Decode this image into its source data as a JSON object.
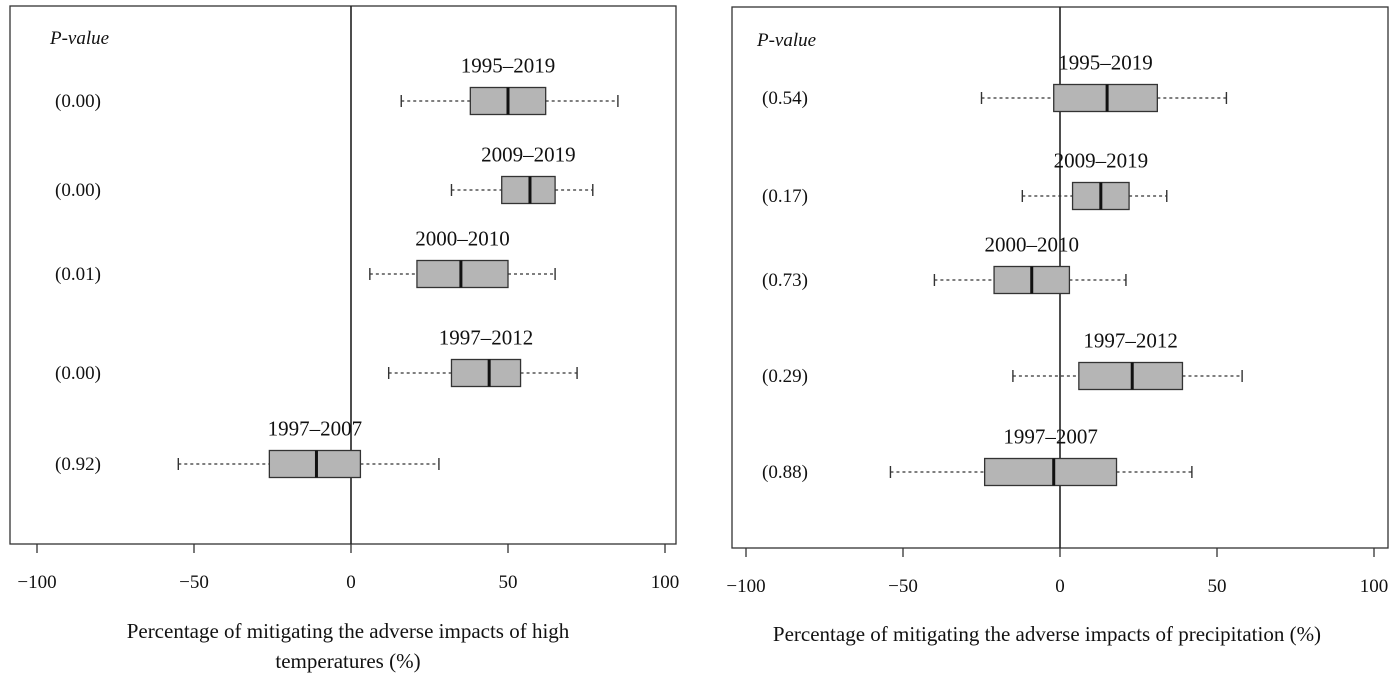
{
  "chart_data": [
    {
      "type": "boxplot",
      "xlabel": "Percentage of mitigating the adverse impacts of high temperatures (%)",
      "xlabel_lines": [
        "Percentage of mitigating the adverse impacts of high",
        "temperatures (%)"
      ],
      "pvalue_header": "P-value",
      "xlim": [
        -100,
        100
      ],
      "xticks": [
        -100,
        -50,
        0,
        50,
        100
      ],
      "zero_line": true,
      "series": [
        {
          "name": "1995–2019",
          "pvalue": "(0.00)",
          "min": 16,
          "q1": 38,
          "median": 50,
          "q3": 62,
          "max": 85
        },
        {
          "name": "2009–2019",
          "pvalue": "(0.00)",
          "min": 32,
          "q1": 48,
          "median": 57,
          "q3": 65,
          "max": 77
        },
        {
          "name": "2000–2010",
          "pvalue": "(0.01)",
          "min": 6,
          "q1": 21,
          "median": 35,
          "q3": 50,
          "max": 65
        },
        {
          "name": "1997–2012",
          "pvalue": "(0.00)",
          "min": 12,
          "q1": 32,
          "median": 44,
          "q3": 54,
          "max": 72
        },
        {
          "name": "1997–2007",
          "pvalue": "(0.92)",
          "min": -55,
          "q1": -26,
          "median": -11,
          "q3": 3,
          "max": 28
        }
      ]
    },
    {
      "type": "boxplot",
      "xlabel": "Percentage of mitigating the adverse impacts of precipitation (%)",
      "xlabel_lines": [
        "Percentage of mitigating the adverse impacts of precipitation (%)"
      ],
      "pvalue_header": "P-value",
      "xlim": [
        -100,
        100
      ],
      "xticks": [
        -100,
        -50,
        0,
        50,
        100
      ],
      "zero_line": true,
      "series": [
        {
          "name": "1995–2019",
          "pvalue": "(0.54)",
          "min": -25,
          "q1": -2,
          "median": 15,
          "q3": 31,
          "max": 53
        },
        {
          "name": "2009–2019",
          "pvalue": "(0.17)",
          "min": -12,
          "q1": 4,
          "median": 13,
          "q3": 22,
          "max": 34
        },
        {
          "name": "2000–2010",
          "pvalue": "(0.73)",
          "min": -40,
          "q1": -21,
          "median": -9,
          "q3": 3,
          "max": 21
        },
        {
          "name": "1997–2012",
          "pvalue": "(0.29)",
          "min": -15,
          "q1": 6,
          "median": 23,
          "q3": 39,
          "max": 58
        },
        {
          "name": "1997–2007",
          "pvalue": "(0.88)",
          "min": -54,
          "q1": -24,
          "median": -2,
          "q3": 18,
          "max": 42
        }
      ]
    }
  ]
}
